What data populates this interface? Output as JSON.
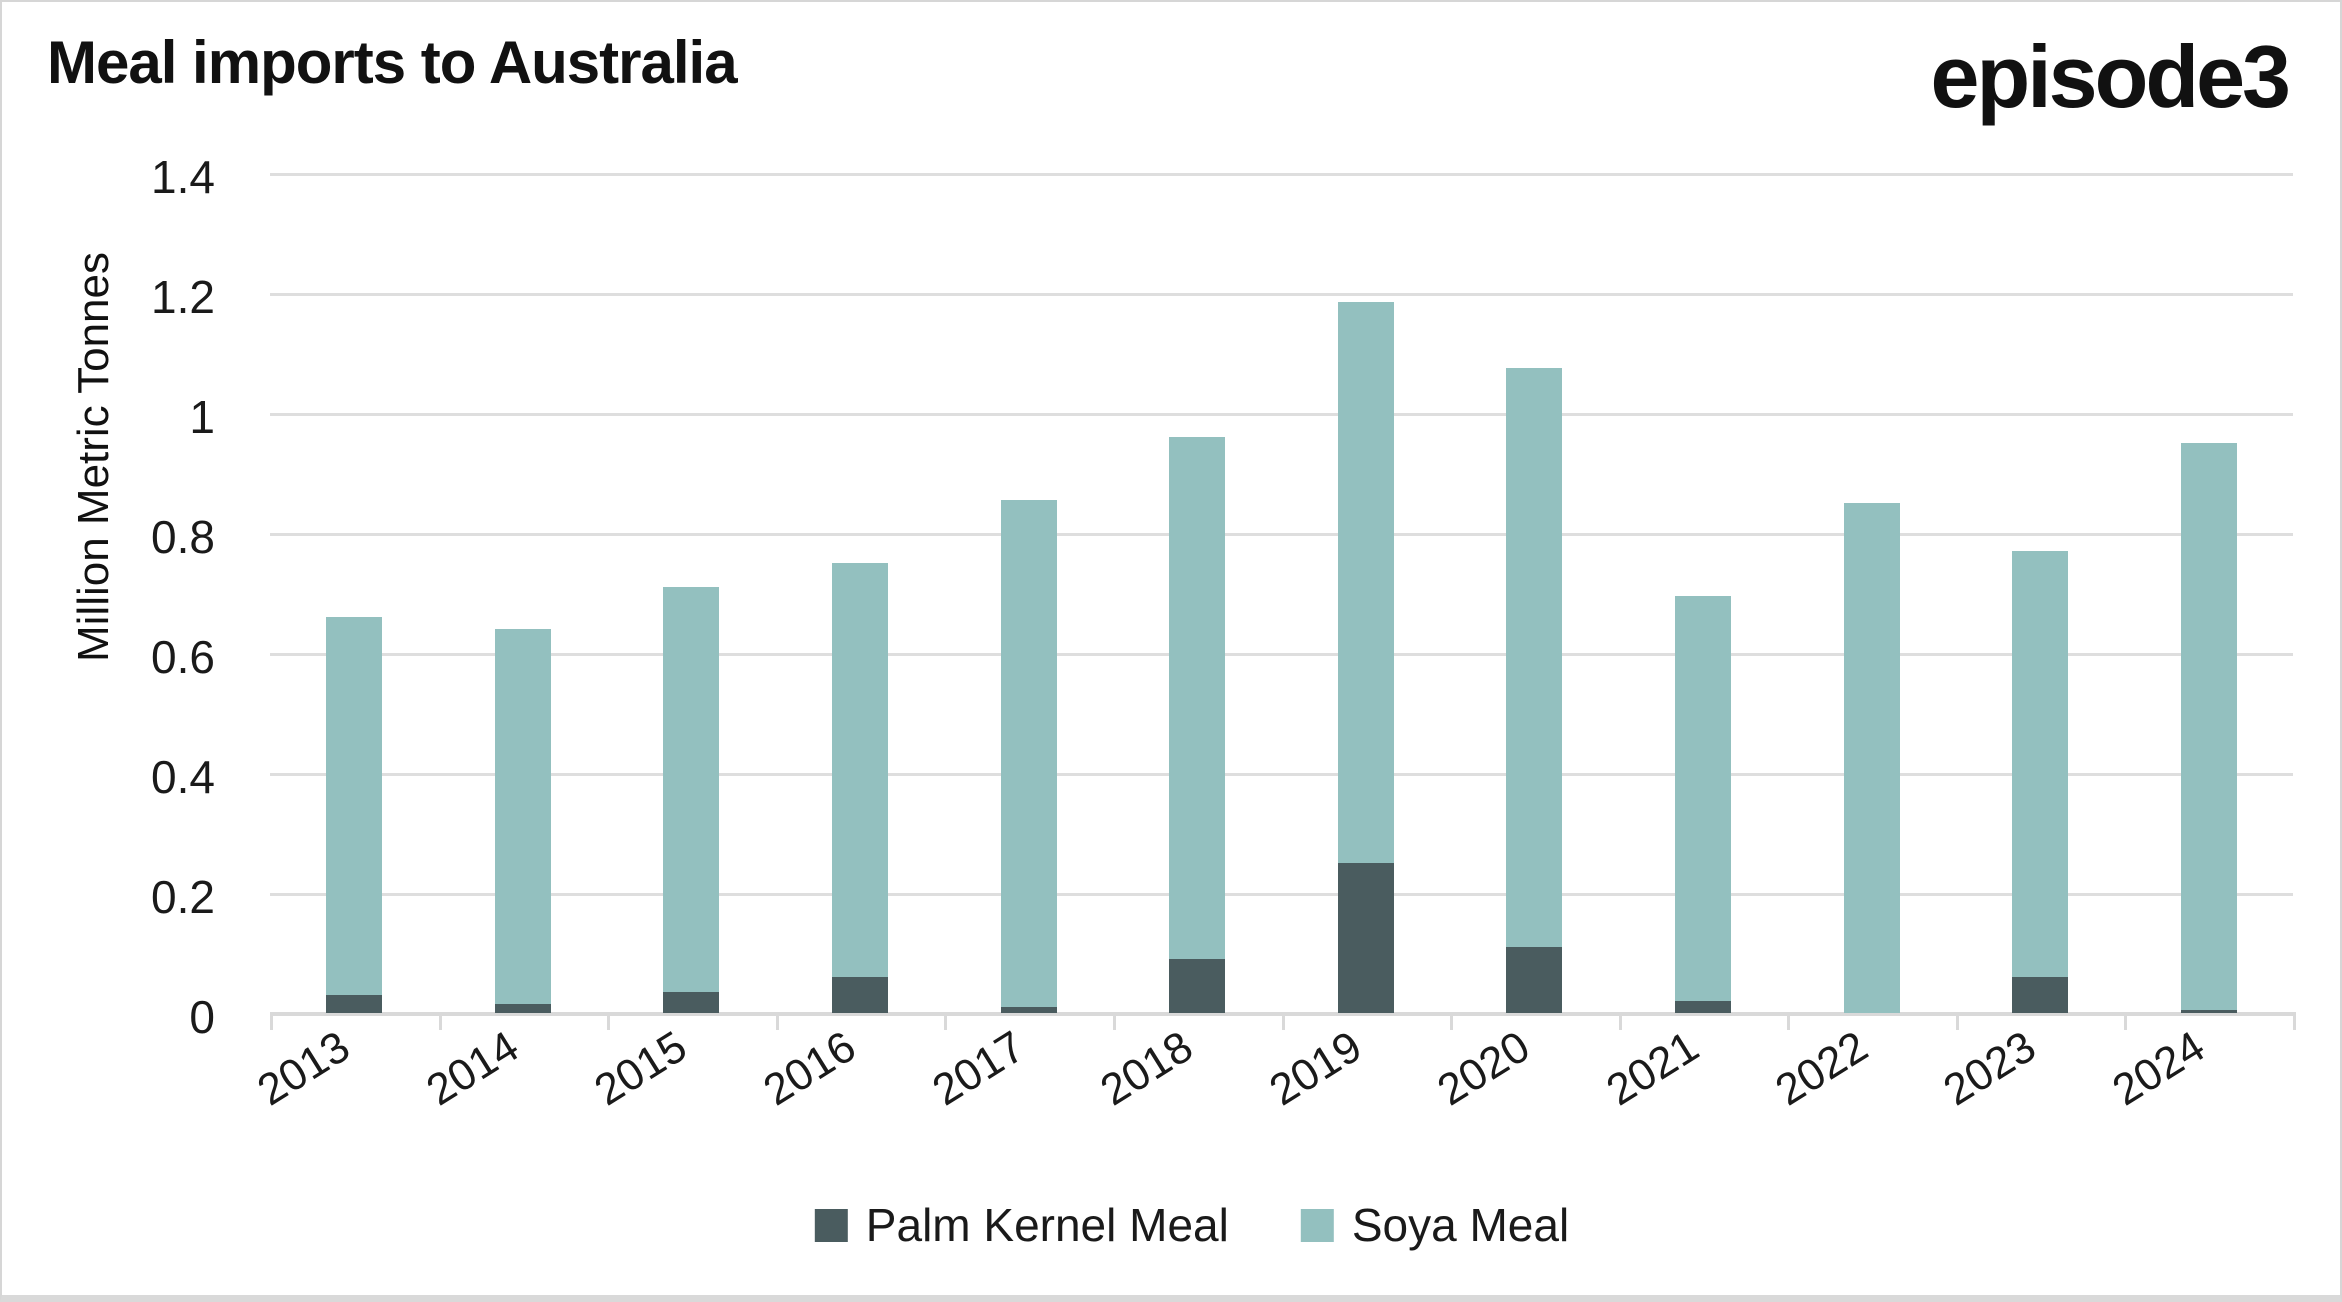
{
  "page": {
    "title": "Meal imports to Australia",
    "brand": "episode3"
  },
  "chart_data": {
    "type": "bar",
    "stacked": true,
    "title": "Meal imports to Australia",
    "xlabel": "",
    "ylabel": "Million Metric Tonnes",
    "ylim": [
      0,
      1.4
    ],
    "ytick_step": 0.2,
    "ytick_labels": [
      "0",
      "0.2",
      "0.4",
      "0.6",
      "0.8",
      "1",
      "1.2",
      "1.4"
    ],
    "grid": "horizontal",
    "legend_position": "bottom-center",
    "categories": [
      "2013",
      "2014",
      "2015",
      "2016",
      "2017",
      "2018",
      "2019",
      "2020",
      "2021",
      "2022",
      "2023",
      "2024"
    ],
    "series": [
      {
        "name": "Palm Kernel Meal",
        "color": "#4a5c5f",
        "values": [
          0.03,
          0.015,
          0.035,
          0.06,
          0.01,
          0.09,
          0.25,
          0.11,
          0.02,
          0.0,
          0.06,
          0.005
        ]
      },
      {
        "name": "Soya Meal",
        "color": "#93c0bf",
        "values": [
          0.63,
          0.625,
          0.675,
          0.69,
          0.845,
          0.87,
          0.935,
          0.965,
          0.675,
          0.85,
          0.71,
          0.945
        ]
      }
    ],
    "totals": [
      0.66,
      0.64,
      0.71,
      0.75,
      0.855,
      0.96,
      1.185,
      1.075,
      0.695,
      0.85,
      0.77,
      0.95
    ]
  },
  "colors": {
    "background": "#ffffff",
    "gridline": "#dedede",
    "axis_line": "#d9d9d9",
    "text": "#111111",
    "palm_kernel": "#4a5c5f",
    "soya": "#93c0bf"
  }
}
